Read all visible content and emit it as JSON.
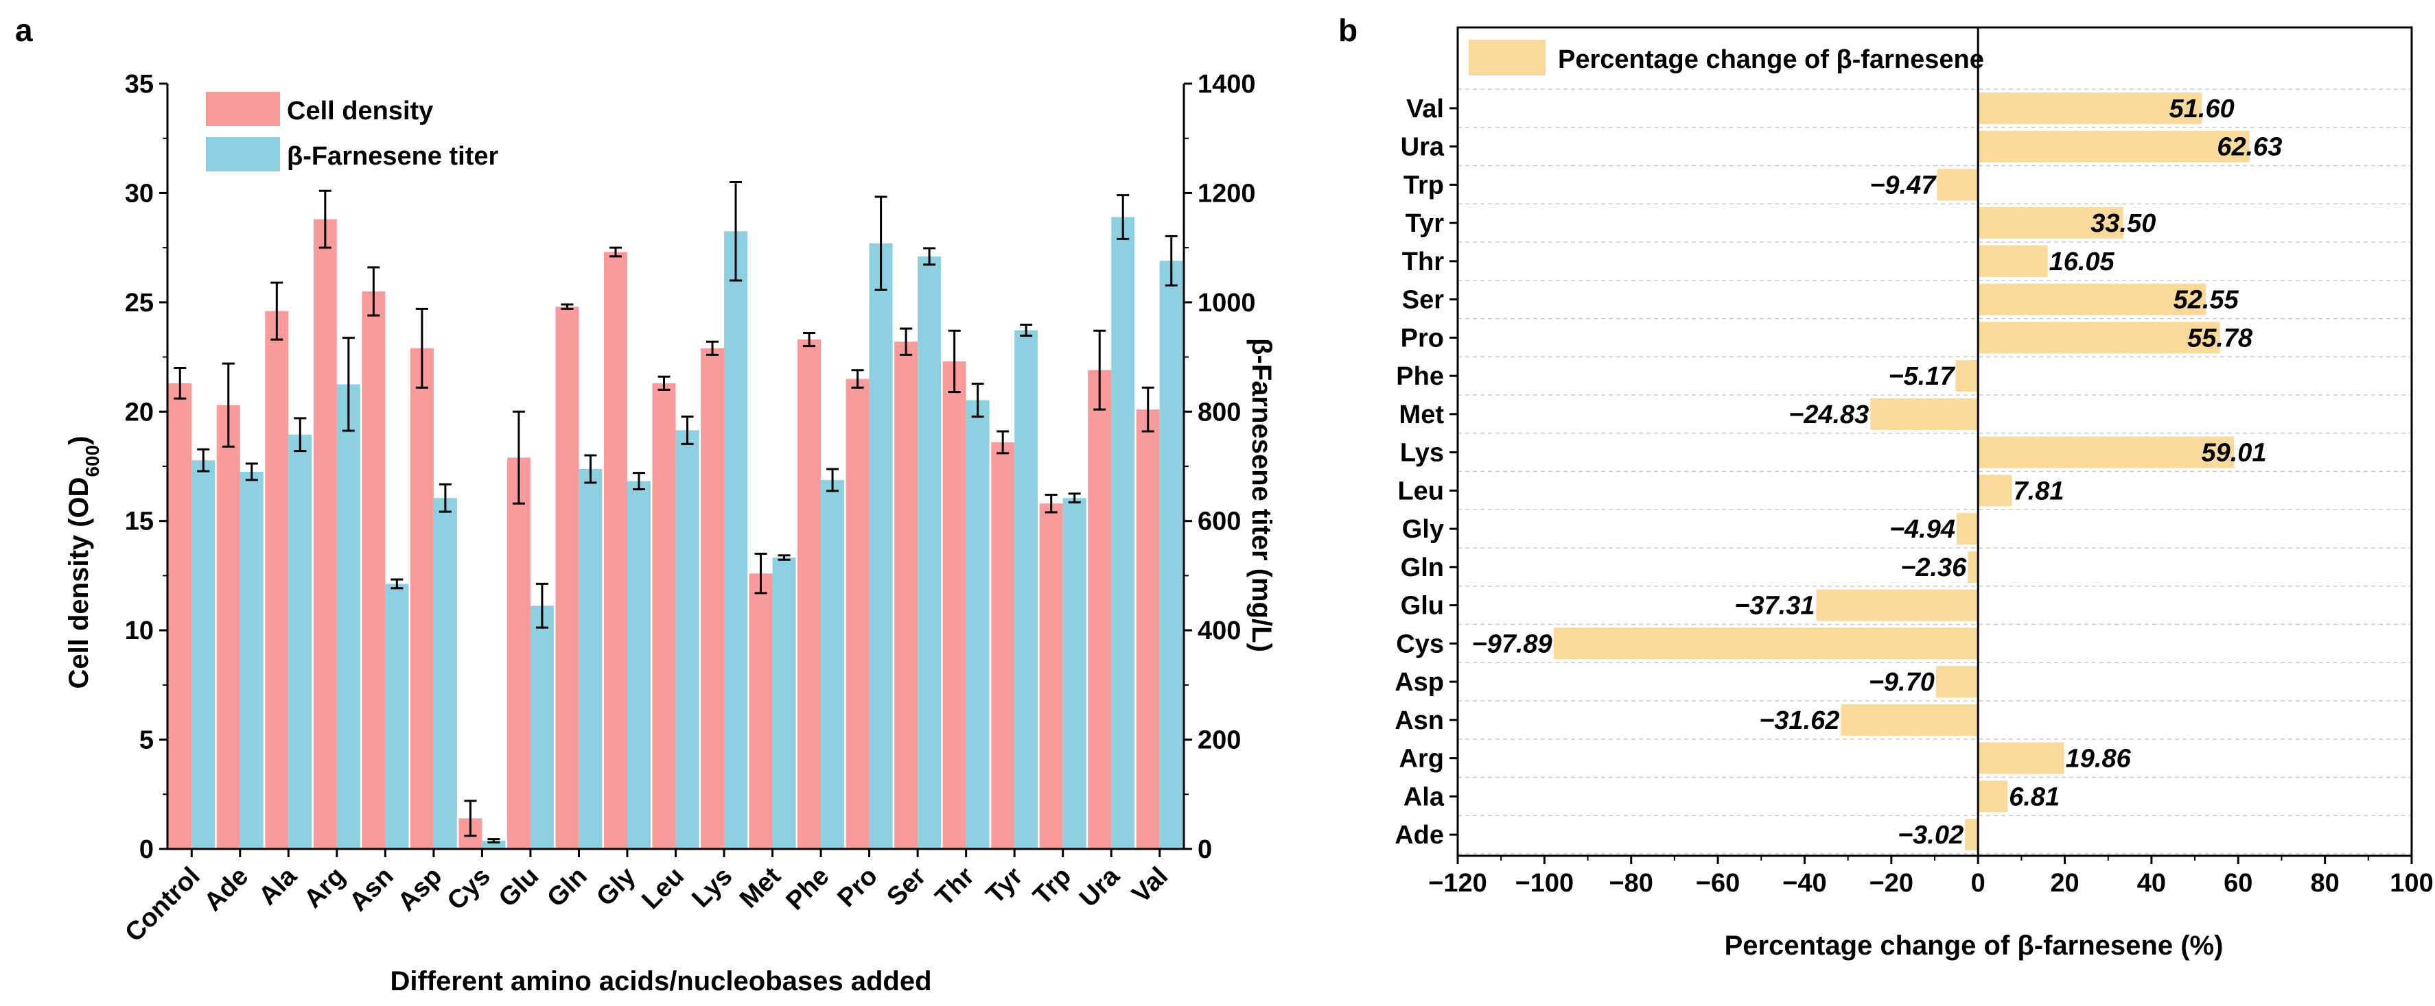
{
  "chart_data": [
    {
      "id": "a",
      "panel_label": "a",
      "type": "bar",
      "xlabel": "Different amino acids/nucleobases added",
      "ylabel_left": "Cell density (OD",
      "ylabel_left_sub": "600",
      "ylabel_left_close": ")",
      "ylabel_right": "β-Farnesene titer (mg/L)",
      "ylim_left": [
        0,
        35
      ],
      "yticks_left": [
        "0",
        "5",
        "10",
        "15",
        "20",
        "25",
        "30",
        "35"
      ],
      "ylim_right": [
        0,
        1400
      ],
      "yticks_right": [
        "0",
        "200",
        "400",
        "600",
        "800",
        "1000",
        "1200",
        "1400"
      ],
      "legend_position": "top-left",
      "categories": [
        "Control",
        "Ade",
        "Ala",
        "Arg",
        "Asn",
        "Asp",
        "Cys",
        "Glu",
        "Gln",
        "Gly",
        "Leu",
        "Lys",
        "Met",
        "Phe",
        "Pro",
        "Ser",
        "Thr",
        "Tyr",
        "Trp",
        "Ura",
        "Val"
      ],
      "series": [
        {
          "name": "Cell density",
          "axis": "left",
          "color": "#f99b9b",
          "values": [
            21.3,
            20.3,
            24.6,
            28.8,
            25.5,
            22.9,
            1.4,
            17.9,
            24.8,
            27.3,
            21.3,
            22.9,
            12.6,
            23.3,
            21.5,
            23.2,
            22.3,
            18.6,
            15.8,
            21.9,
            20.1
          ],
          "errors": [
            0.7,
            1.9,
            1.3,
            1.3,
            1.1,
            1.8,
            0.8,
            2.1,
            0.1,
            0.2,
            0.3,
            0.3,
            0.9,
            0.3,
            0.4,
            0.6,
            1.4,
            0.5,
            0.4,
            1.8,
            1.0
          ]
        },
        {
          "name": "β-Farnesene titer",
          "axis": "right",
          "color": "#8dd0e2",
          "values": [
            711,
            690,
            758,
            850,
            485,
            642,
            15,
            445,
            695,
            673,
            766,
            1130,
            533,
            675,
            1108,
            1084,
            821,
            949,
            642,
            1156,
            1076
          ],
          "errors": [
            20,
            15,
            30,
            85,
            8,
            25,
            3,
            40,
            25,
            15,
            25,
            90,
            4,
            20,
            85,
            15,
            30,
            10,
            8,
            40,
            45
          ]
        }
      ]
    },
    {
      "id": "b",
      "panel_label": "b",
      "type": "bar",
      "orientation": "horizontal",
      "xlabel": "Percentage change of β-farnesene (%)",
      "xlim": [
        -120,
        100
      ],
      "xticks": [
        "−120",
        "−100",
        "−80",
        "−60",
        "−40",
        "−20",
        "0",
        "20",
        "40",
        "60",
        "80",
        "100"
      ],
      "legend_position": "top-left",
      "series_name": "Percentage change of β-farnesene",
      "color": "#fbd99a",
      "categories": [
        "Val",
        "Ura",
        "Trp",
        "Tyr",
        "Thr",
        "Ser",
        "Pro",
        "Phe",
        "Met",
        "Lys",
        "Leu",
        "Gly",
        "Gln",
        "Glu",
        "Cys",
        "Asp",
        "Asn",
        "Arg",
        "Ala",
        "Ade"
      ],
      "values": [
        51.6,
        62.63,
        -9.47,
        33.5,
        16.05,
        52.55,
        55.78,
        -5.17,
        -24.83,
        59.01,
        7.81,
        -4.94,
        -2.36,
        -37.31,
        -97.89,
        -9.7,
        -31.62,
        19.86,
        6.81,
        -3.02
      ],
      "value_labels": [
        "51.60",
        "62.63",
        "−9.47",
        "33.50",
        "16.05",
        "52.55",
        "55.78",
        "−5.17",
        "−24.83",
        "59.01",
        "7.81",
        "−4.94",
        "−2.36",
        "−37.31",
        "−97.89",
        "−9.70",
        "−31.62",
        "19.86",
        "6.81",
        "−3.02"
      ]
    }
  ]
}
